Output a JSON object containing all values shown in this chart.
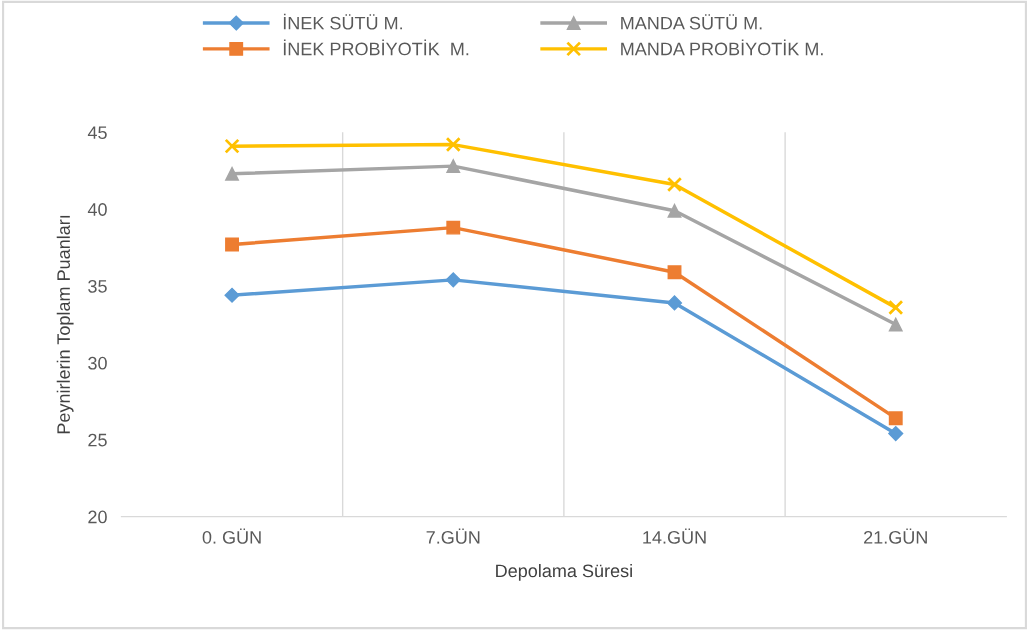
{
  "chart_data": {
    "type": "line",
    "xlabel": "Depolama Süresi",
    "ylabel": "Peynirlerin Toplam Puanları",
    "categories": [
      "0. GÜN",
      "7.GÜN",
      "14.GÜN",
      "21.GÜN"
    ],
    "series": [
      {
        "name": "İNEK SÜTÜ M.",
        "color": "#5b9bd5",
        "marker": "diamond",
        "values": [
          34.4,
          35.4,
          33.9,
          25.4
        ]
      },
      {
        "name": "İNEK PROBİYOTİK  M.",
        "color": "#ed7d31",
        "marker": "square",
        "values": [
          37.7,
          38.8,
          35.9,
          26.4
        ]
      },
      {
        "name": "MANDA SÜTÜ M.",
        "color": "#a5a5a5",
        "marker": "triangle",
        "values": [
          42.3,
          42.8,
          39.9,
          32.5
        ]
      },
      {
        "name": "MANDA PROBİYOTİK M.",
        "color": "#ffc000",
        "marker": "cross",
        "values": [
          44.1,
          44.2,
          41.6,
          33.6
        ]
      }
    ],
    "ylim": [
      20,
      45
    ],
    "yticks": [
      20,
      25,
      30,
      35,
      40,
      45
    ],
    "grid": "x",
    "legend": "top",
    "line_style": "solid"
  }
}
